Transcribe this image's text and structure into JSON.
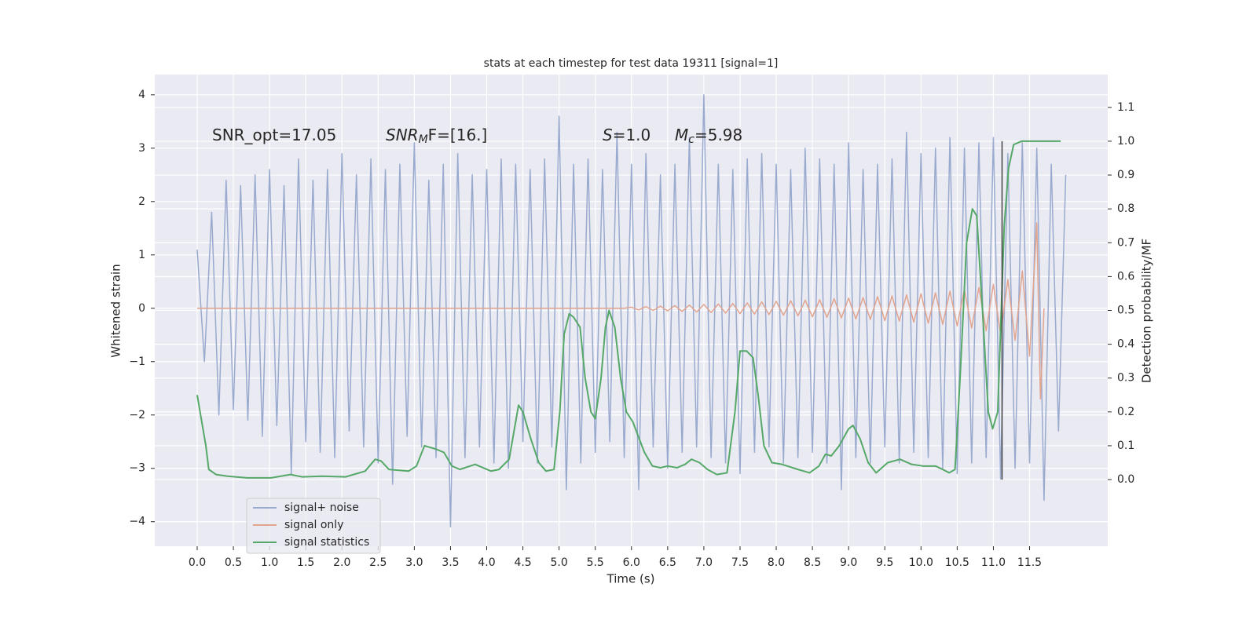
{
  "chart_data": {
    "type": "line",
    "title": "stats at each timestep for test data 19311 [signal=1]",
    "xlabel": "Time (s)",
    "ylabel": "Whitened strain",
    "y2label": "Detection probability/MF",
    "xlim": [
      -0.586,
      12.58
    ],
    "ylim": [
      -4.46,
      4.38
    ],
    "y2lim": [
      -0.197,
      1.197
    ],
    "xticks": [
      {
        "value": 0,
        "label": "0.0"
      },
      0.5,
      {
        "value": 1,
        "label": "1.0"
      },
      1.5,
      {
        "value": 2,
        "label": "2.0"
      },
      2.5,
      {
        "value": 3,
        "label": "3.0"
      },
      3.5,
      {
        "value": 4,
        "label": "4.0"
      },
      4.5,
      {
        "value": 5,
        "label": "5.0"
      },
      5.5,
      {
        "value": 6,
        "label": "6.0"
      },
      6.5,
      {
        "value": 7,
        "label": "7.0"
      },
      7.5,
      {
        "value": 8,
        "label": "8.0"
      },
      8.5,
      {
        "value": 9,
        "label": "9.0"
      },
      9.5,
      {
        "value": 10,
        "label": "10.0"
      },
      10.5,
      {
        "value": 11,
        "label": "11.0"
      },
      11.5
    ],
    "yticks": [
      {
        "value": -4,
        "label": "−4"
      },
      {
        "value": -3,
        "label": "−3"
      },
      {
        "value": -2,
        "label": "−2"
      },
      {
        "value": -1,
        "label": "−1"
      },
      0,
      1,
      2,
      3,
      4
    ],
    "y2ticks": [
      {
        "value": 0,
        "label": "0.0"
      },
      0.1,
      0.2,
      0.3,
      0.4,
      0.5,
      0.6,
      0.7,
      0.8,
      0.9,
      {
        "value": 1,
        "label": "1.0"
      },
      1.1
    ],
    "grid": true,
    "legend": "lower left",
    "annotations": [
      {
        "text": "SNR_opt=17.05"
      },
      {
        "main": "SNR",
        "sub": "M",
        "rest": "F=[16.]"
      },
      {
        "main": "S",
        "rest": "=1.0"
      },
      {
        "main": "M",
        "sub": "c",
        "rest": "=5.98"
      }
    ],
    "vline": {
      "x": 11.12,
      "y2range": [
        0,
        1.0
      ],
      "color": "#444444"
    },
    "series": [
      {
        "name": "signal+ noise",
        "color": "#99aacf",
        "axis": "y",
        "x": [
          0,
          0.1,
          0.2,
          0.3,
          0.4,
          0.5,
          0.6,
          0.7,
          0.8,
          0.9,
          1,
          1.1,
          1.2,
          1.3,
          1.4,
          1.5,
          1.6,
          1.7,
          1.8,
          1.9,
          2,
          2.1,
          2.2,
          2.3,
          2.4,
          2.5,
          2.6,
          2.7,
          2.8,
          2.9,
          3,
          3.1,
          3.2,
          3.3,
          3.4,
          3.5,
          3.6,
          3.7,
          3.8,
          3.9,
          4,
          4.1,
          4.2,
          4.3,
          4.4,
          4.5,
          4.6,
          4.7,
          4.8,
          4.9,
          5,
          5.1,
          5.2,
          5.3,
          5.4,
          5.5,
          5.6,
          5.7,
          5.8,
          5.9,
          6,
          6.1,
          6.2,
          6.3,
          6.4,
          6.5,
          6.6,
          6.7,
          6.8,
          6.9,
          7,
          7.1,
          7.2,
          7.3,
          7.4,
          7.5,
          7.6,
          7.7,
          7.8,
          7.9,
          8,
          8.1,
          8.2,
          8.3,
          8.4,
          8.5,
          8.6,
          8.7,
          8.8,
          8.9,
          9,
          9.1,
          9.2,
          9.3,
          9.4,
          9.5,
          9.6,
          9.7,
          9.8,
          9.9,
          10,
          10.1,
          10.2,
          10.3,
          10.4,
          10.5,
          10.6,
          10.7,
          10.8,
          10.9,
          11,
          11.1,
          11.2,
          11.3,
          11.4,
          11.5,
          11.6,
          11.7,
          11.8,
          11.9,
          12
        ],
        "values": [
          1.1,
          -1.0,
          1.8,
          -2.0,
          2.4,
          -1.9,
          2.3,
          -2.1,
          2.5,
          -2.4,
          2.6,
          -2.2,
          2.3,
          -3.1,
          2.8,
          -2.5,
          2.4,
          -2.7,
          2.6,
          -2.8,
          2.9,
          -2.3,
          2.5,
          -2.6,
          2.8,
          -2.9,
          2.6,
          -3.3,
          2.7,
          -2.4,
          3.1,
          -2.6,
          2.4,
          -2.8,
          2.7,
          -4.1,
          2.9,
          -2.8,
          2.5,
          -2.6,
          2.6,
          -2.9,
          2.8,
          -3.0,
          2.7,
          -2.5,
          2.6,
          -2.9,
          2.8,
          -2.6,
          3.6,
          -3.4,
          2.7,
          -2.9,
          2.8,
          -2.7,
          2.6,
          -2.5,
          3.3,
          -2.8,
          2.7,
          -3.4,
          2.9,
          -2.6,
          2.5,
          -3.0,
          2.7,
          -2.7,
          3.2,
          -2.6,
          4.0,
          -2.8,
          2.7,
          -2.9,
          2.6,
          -3.1,
          2.8,
          -2.7,
          2.9,
          -2.6,
          2.7,
          -2.9,
          2.6,
          -2.8,
          3.0,
          -2.7,
          2.8,
          -2.9,
          2.7,
          -3.4,
          3.1,
          -2.8,
          2.6,
          -2.9,
          2.7,
          -2.6,
          2.8,
          -2.9,
          3.3,
          -2.7,
          2.9,
          -2.8,
          3.0,
          -3.0,
          3.2,
          -3.1,
          3.0,
          -2.9,
          3.1,
          -2.8,
          3.2,
          -3.2,
          2.9,
          -3.0,
          3.1,
          -2.9,
          3.0,
          -3.6,
          2.7,
          -2.3,
          2.5
        ]
      },
      {
        "name": "signal only",
        "color": "#e1a48e",
        "axis": "y",
        "x": [
          0,
          5.9,
          6.0,
          6.1,
          6.2,
          6.3,
          6.4,
          6.5,
          6.6,
          6.7,
          6.8,
          6.9,
          7.0,
          7.1,
          7.2,
          7.3,
          7.4,
          7.5,
          7.6,
          7.7,
          7.8,
          7.9,
          8.0,
          8.1,
          8.2,
          8.3,
          8.4,
          8.5,
          8.6,
          8.7,
          8.8,
          8.9,
          9.0,
          9.1,
          9.2,
          9.3,
          9.4,
          9.5,
          9.6,
          9.7,
          9.8,
          9.9,
          10.0,
          10.1,
          10.2,
          10.3,
          10.4,
          10.5,
          10.6,
          10.7,
          10.8,
          10.9,
          11.0,
          11.1,
          11.2,
          11.3,
          11.4,
          11.5,
          11.6,
          11.65,
          11.7
        ],
        "values": [
          0,
          0,
          0.02,
          -0.03,
          0.03,
          -0.04,
          0.04,
          -0.05,
          0.05,
          -0.06,
          0.06,
          -0.07,
          0.07,
          -0.08,
          0.08,
          -0.09,
          0.09,
          -0.1,
          0.1,
          -0.11,
          0.12,
          -0.12,
          0.13,
          -0.13,
          0.14,
          -0.14,
          0.15,
          -0.16,
          0.16,
          -0.17,
          0.18,
          -0.18,
          0.19,
          -0.2,
          0.2,
          -0.21,
          0.22,
          -0.23,
          0.23,
          -0.24,
          0.25,
          -0.26,
          0.27,
          -0.28,
          0.29,
          -0.3,
          0.32,
          -0.33,
          0.35,
          -0.37,
          0.39,
          -0.42,
          0.45,
          -0.49,
          0.54,
          -0.6,
          0.7,
          -0.9,
          1.6,
          -1.7,
          0
        ]
      },
      {
        "name": "signal statistics",
        "color": "#55a868",
        "axis": "y2",
        "x": [
          0.0,
          0.12,
          0.16,
          0.26,
          0.42,
          0.69,
          1.02,
          1.29,
          1.45,
          1.73,
          2.05,
          2.32,
          2.46,
          2.54,
          2.65,
          2.92,
          3.03,
          3.14,
          3.3,
          3.41,
          3.52,
          3.63,
          3.84,
          4.06,
          4.17,
          4.31,
          4.44,
          4.5,
          4.61,
          4.72,
          4.82,
          4.93,
          5.01,
          5.07,
          5.14,
          5.2,
          5.29,
          5.36,
          5.44,
          5.5,
          5.58,
          5.64,
          5.69,
          5.77,
          5.85,
          5.93,
          6.02,
          6.09,
          6.18,
          6.29,
          6.4,
          6.5,
          6.63,
          6.74,
          6.83,
          6.94,
          7.05,
          7.18,
          7.32,
          7.43,
          7.5,
          7.59,
          7.68,
          7.75,
          7.83,
          7.94,
          8.08,
          8.3,
          8.46,
          8.59,
          8.68,
          8.76,
          8.87,
          9.0,
          9.06,
          9.16,
          9.27,
          9.38,
          9.54,
          9.71,
          9.87,
          10.03,
          10.2,
          10.3,
          10.39,
          10.47,
          10.54,
          10.63,
          10.71,
          10.77,
          10.85,
          10.93,
          10.99,
          11.06,
          11.15,
          11.21,
          11.28,
          11.39,
          11.61,
          11.93
        ],
        "values": [
          0.25,
          0.1,
          0.03,
          0.015,
          0.01,
          0.005,
          0.005,
          0.015,
          0.008,
          0.01,
          0.008,
          0.025,
          0.06,
          0.055,
          0.03,
          0.025,
          0.04,
          0.1,
          0.09,
          0.08,
          0.04,
          0.03,
          0.045,
          0.025,
          0.03,
          0.06,
          0.22,
          0.2,
          0.12,
          0.05,
          0.025,
          0.03,
          0.2,
          0.43,
          0.49,
          0.48,
          0.45,
          0.3,
          0.2,
          0.18,
          0.3,
          0.45,
          0.5,
          0.45,
          0.3,
          0.2,
          0.17,
          0.13,
          0.08,
          0.04,
          0.035,
          0.04,
          0.035,
          0.045,
          0.06,
          0.05,
          0.03,
          0.015,
          0.02,
          0.2,
          0.38,
          0.38,
          0.36,
          0.25,
          0.1,
          0.05,
          0.045,
          0.03,
          0.02,
          0.04,
          0.075,
          0.07,
          0.1,
          0.15,
          0.16,
          0.12,
          0.05,
          0.02,
          0.05,
          0.06,
          0.045,
          0.04,
          0.04,
          0.03,
          0.02,
          0.03,
          0.3,
          0.7,
          0.8,
          0.78,
          0.5,
          0.2,
          0.15,
          0.2,
          0.75,
          0.92,
          0.99,
          1.0,
          1.0,
          1.0
        ]
      }
    ]
  }
}
